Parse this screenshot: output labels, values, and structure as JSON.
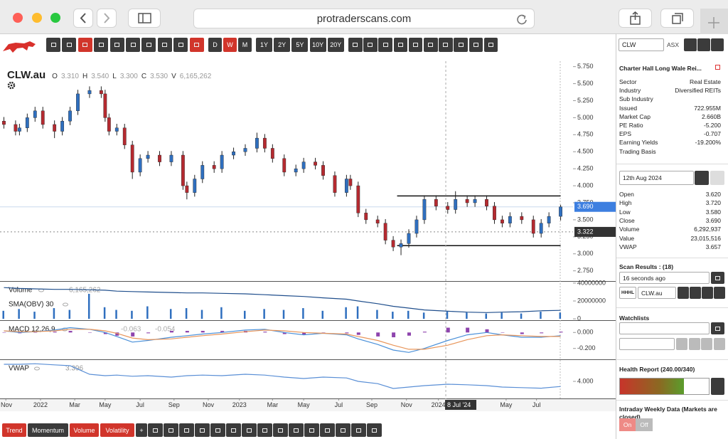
{
  "browser": {
    "url": "protraderscans.com"
  },
  "toolbar": {
    "periods": [
      "D",
      "W",
      "M"
    ],
    "active_period": 1,
    "ranges": [
      "1Y",
      "2Y",
      "5Y",
      "10Y",
      "20Y"
    ],
    "symbol": "CLW",
    "exchange": "ASX"
  },
  "header": {
    "ticker": "CLW.au",
    "quote": [
      {
        "k": "O",
        "v": "3.310"
      },
      {
        "k": "H",
        "v": "3.540"
      },
      {
        "k": "L",
        "v": "3.300"
      },
      {
        "k": "C",
        "v": "3.530"
      },
      {
        "k": "V",
        "v": "6,165,262"
      }
    ]
  },
  "chart_data": [
    {
      "type": "candlestick",
      "up_color": "#2f6fbf",
      "down_color": "#b52a30",
      "xlim": [
        0,
        147
      ],
      "xticks": [
        {
          "value": 1.5,
          "label": "Nov"
        },
        {
          "value": 10.4,
          "label": "2022"
        },
        {
          "value": 19.2,
          "label": "Mar"
        },
        {
          "value": 27,
          "label": "May"
        },
        {
          "value": 36,
          "label": "Jul"
        },
        {
          "value": 44.7,
          "label": "Sep"
        },
        {
          "value": 53.5,
          "label": "Nov"
        },
        {
          "value": 61.5,
          "label": "2023"
        },
        {
          "value": 70,
          "label": "Mar"
        },
        {
          "value": 78,
          "label": "May"
        },
        {
          "value": 87,
          "label": "Jul"
        },
        {
          "value": 95.5,
          "label": "Sep"
        },
        {
          "value": 104.4,
          "label": "Nov"
        },
        {
          "value": 112.6,
          "label": "2024"
        },
        {
          "value": 130,
          "label": "May"
        },
        {
          "value": 137.8,
          "label": "Jul"
        }
      ],
      "ylim": [
        2.6,
        5.83
      ],
      "yticks": [
        {
          "value": 2.75,
          "label": "2.750"
        },
        {
          "value": 3.0,
          "label": "3.000"
        },
        {
          "value": 3.25,
          "label": "3.250"
        },
        {
          "value": 3.5,
          "label": "3.500"
        },
        {
          "value": 3.75,
          "label": "3.750"
        },
        {
          "value": 4.0,
          "label": "4.000"
        },
        {
          "value": 4.25,
          "label": "4.250"
        },
        {
          "value": 4.5,
          "label": "4.500"
        },
        {
          "value": 4.75,
          "label": "4.750"
        },
        {
          "value": 5.0,
          "label": "5.000"
        },
        {
          "value": 5.25,
          "label": "5.250"
        },
        {
          "value": 5.5,
          "label": "5.500"
        },
        {
          "value": 5.75,
          "label": "5.750"
        }
      ],
      "x": [
        1,
        4,
        5,
        7,
        9,
        11,
        14,
        16,
        18,
        20,
        23,
        26,
        27,
        28,
        30,
        32,
        34,
        36,
        38,
        41,
        44,
        47,
        48,
        50,
        52,
        55,
        57,
        60,
        63,
        66,
        68,
        70,
        73,
        76,
        78,
        81,
        83,
        86,
        89,
        90,
        92,
        94,
        97,
        99,
        101,
        103,
        105,
        107,
        109,
        112,
        115,
        117,
        120,
        122,
        125,
        127,
        129,
        131,
        134,
        137,
        139,
        141,
        144
      ],
      "candles": [
        [
          4.95,
          5.01,
          4.84,
          4.9
        ],
        [
          4.9,
          4.96,
          4.74,
          4.8
        ],
        [
          4.8,
          4.91,
          4.74,
          4.85
        ],
        [
          4.85,
          5.06,
          4.79,
          5.0
        ],
        [
          5.0,
          5.16,
          4.94,
          5.1
        ],
        [
          5.1,
          5.16,
          4.84,
          4.9
        ],
        [
          4.9,
          4.96,
          4.7,
          4.8
        ],
        [
          4.8,
          5.01,
          4.74,
          4.95
        ],
        [
          4.95,
          5.16,
          4.89,
          5.1
        ],
        [
          5.1,
          5.41,
          5.04,
          5.35
        ],
        [
          5.35,
          5.46,
          5.29,
          5.4
        ],
        [
          5.4,
          5.46,
          5.29,
          5.35
        ],
        [
          5.35,
          5.41,
          4.94,
          5.0
        ],
        [
          5.0,
          5.06,
          4.74,
          4.8
        ],
        [
          4.8,
          4.91,
          4.74,
          4.85
        ],
        [
          4.85,
          4.91,
          4.54,
          4.6
        ],
        [
          4.6,
          4.66,
          4.1,
          4.2
        ],
        [
          4.2,
          4.46,
          4.14,
          4.4
        ],
        [
          4.4,
          4.51,
          4.34,
          4.45
        ],
        [
          4.45,
          4.51,
          4.29,
          4.35
        ],
        [
          4.35,
          4.51,
          4.29,
          4.45
        ],
        [
          4.45,
          4.51,
          3.94,
          4.0
        ],
        [
          4.0,
          4.06,
          3.8,
          3.9
        ],
        [
          3.9,
          4.16,
          3.84,
          4.1
        ],
        [
          4.1,
          4.36,
          4.04,
          4.3
        ],
        [
          4.3,
          4.36,
          4.19,
          4.25
        ],
        [
          4.25,
          4.51,
          4.19,
          4.45
        ],
        [
          4.45,
          4.56,
          4.39,
          4.5
        ],
        [
          4.5,
          4.61,
          4.44,
          4.55
        ],
        [
          4.55,
          4.78,
          4.49,
          4.7
        ],
        [
          4.7,
          4.76,
          4.49,
          4.55
        ],
        [
          4.55,
          4.61,
          4.34,
          4.4
        ],
        [
          4.4,
          4.46,
          4.14,
          4.2
        ],
        [
          4.2,
          4.31,
          4.14,
          4.25
        ],
        [
          4.25,
          4.41,
          4.19,
          4.35
        ],
        [
          4.35,
          4.41,
          4.24,
          4.3
        ],
        [
          4.3,
          4.36,
          4.09,
          4.15
        ],
        [
          4.15,
          4.21,
          3.84,
          3.9
        ],
        [
          3.9,
          4.16,
          3.84,
          4.1
        ],
        [
          4.1,
          4.16,
          3.94,
          4.0
        ],
        [
          4.0,
          4.06,
          3.54,
          3.6
        ],
        [
          3.6,
          3.66,
          3.44,
          3.5
        ],
        [
          3.5,
          3.56,
          3.39,
          3.45
        ],
        [
          3.45,
          3.51,
          3.14,
          3.2
        ],
        [
          3.2,
          3.26,
          3.04,
          3.1
        ],
        [
          3.1,
          3.21,
          2.98,
          3.15
        ],
        [
          3.15,
          3.36,
          3.09,
          3.3
        ],
        [
          3.3,
          3.56,
          3.24,
          3.5
        ],
        [
          3.5,
          3.86,
          3.44,
          3.8
        ],
        [
          3.8,
          3.86,
          3.64,
          3.7
        ],
        [
          3.7,
          3.76,
          3.59,
          3.65
        ],
        [
          3.65,
          3.92,
          3.59,
          3.8
        ],
        [
          3.8,
          3.86,
          3.69,
          3.75
        ],
        [
          3.75,
          3.86,
          3.69,
          3.8
        ],
        [
          3.8,
          3.86,
          3.64,
          3.7
        ],
        [
          3.7,
          3.76,
          3.44,
          3.5
        ],
        [
          3.5,
          3.56,
          3.39,
          3.45
        ],
        [
          3.45,
          3.61,
          3.39,
          3.55
        ],
        [
          3.55,
          3.61,
          3.44,
          3.5
        ],
        [
          3.5,
          3.56,
          3.24,
          3.3
        ],
        [
          3.3,
          3.51,
          3.24,
          3.45
        ],
        [
          3.45,
          3.61,
          3.39,
          3.55
        ],
        [
          3.55,
          3.72,
          3.49,
          3.69
        ]
      ],
      "lines": [
        {
          "value": 3.85,
          "from": 102,
          "to": 144
        },
        {
          "value": 3.12,
          "from": 102,
          "to": 144
        }
      ],
      "price_labels": [
        {
          "value": 3.69,
          "label": "3.690",
          "color": "#3d7fe0",
          "dashed": false
        },
        {
          "value": 3.322,
          "label": "3.322",
          "color": "#333333",
          "dashed": true
        }
      ],
      "crosshair": {
        "x": 114.5,
        "label": "8 Jul '24"
      }
    },
    {
      "type": "bar",
      "legend_value": "6,165,262",
      "ylim": [
        -1500000,
        41500000
      ],
      "yticks": [
        0,
        20000000,
        40000000
      ],
      "x": [
        1,
        5,
        9,
        14,
        18,
        23,
        27,
        30,
        34,
        38,
        44,
        48,
        52,
        57,
        63,
        68,
        73,
        78,
        83,
        89,
        92,
        97,
        101,
        105,
        109,
        115,
        120,
        125,
        129,
        134,
        139,
        144
      ],
      "series": [
        {
          "name": "Volume",
          "type": "bar",
          "color": "#2f6fbf",
          "values": [
            9000000,
            11000000,
            8000000,
            12000000,
            10000000,
            28000000,
            13000000,
            10000000,
            9000000,
            14000000,
            11000000,
            12000000,
            10000000,
            13000000,
            9000000,
            11000000,
            10000000,
            12000000,
            9000000,
            13000000,
            14000000,
            10000000,
            8000000,
            9000000,
            7000000,
            8000000,
            7000000,
            6000000,
            7000000,
            6000000,
            8000000,
            7000000
          ]
        },
        {
          "name": "SMA(OBV) 30",
          "type": "line",
          "color": "#1f4e8c",
          "values": [
            35000000,
            34000000,
            33500000,
            33000000,
            33000000,
            32500000,
            32000000,
            31000000,
            30500000,
            30000000,
            29500000,
            29000000,
            29000000,
            28500000,
            28000000,
            27000000,
            26000000,
            25000000,
            23500000,
            22000000,
            20000000,
            17000000,
            14000000,
            12000000,
            10000000,
            8500000,
            7500000,
            7000000,
            7500000,
            8000000,
            9000000,
            9500000
          ]
        }
      ]
    },
    {
      "type": "line",
      "title": "MACD 12,26,9",
      "legend_values": [
        "-0.063",
        "-0.054"
      ],
      "ylim": [
        -0.336,
        0.145
      ],
      "yticks": [
        {
          "value": 0,
          "label": "0.000"
        },
        {
          "value": -0.2,
          "label": "-0.200"
        }
      ],
      "x": [
        1,
        5,
        9,
        14,
        18,
        23,
        27,
        30,
        34,
        38,
        44,
        48,
        52,
        57,
        63,
        68,
        73,
        78,
        83,
        89,
        92,
        97,
        101,
        105,
        109,
        115,
        120,
        125,
        129,
        134,
        139,
        144
      ],
      "series": [
        {
          "type": "bar",
          "color": "#8e44ad",
          "values": [
            0.0,
            -0.01,
            0.0,
            0.01,
            0.02,
            0.0,
            -0.02,
            -0.04,
            -0.05,
            -0.01,
            0.02,
            0.02,
            0.02,
            0.02,
            0.02,
            0.01,
            -0.02,
            -0.03,
            0.0,
            -0.01,
            -0.03,
            -0.05,
            -0.06,
            -0.04,
            0.01,
            0.06,
            0.06,
            0.04,
            0.0,
            -0.02,
            -0.01,
            0.01
          ]
        },
        {
          "type": "line",
          "color": "#4a90d9",
          "values": [
            0.02,
            0.0,
            0.01,
            0.03,
            0.06,
            0.04,
            0.0,
            -0.05,
            -0.12,
            -0.1,
            -0.06,
            -0.04,
            -0.02,
            0.0,
            0.03,
            0.04,
            0.0,
            -0.03,
            -0.01,
            -0.03,
            -0.08,
            -0.15,
            -0.22,
            -0.25,
            -0.2,
            -0.1,
            -0.03,
            0.0,
            -0.03,
            -0.06,
            -0.06,
            -0.04
          ]
        },
        {
          "type": "line",
          "color": "#e8955a",
          "values": [
            0.02,
            0.01,
            0.01,
            0.02,
            0.04,
            0.04,
            0.02,
            -0.01,
            -0.07,
            -0.09,
            -0.08,
            -0.06,
            -0.04,
            -0.02,
            0.01,
            0.03,
            0.02,
            0.0,
            -0.01,
            -0.02,
            -0.05,
            -0.1,
            -0.16,
            -0.21,
            -0.21,
            -0.16,
            -0.09,
            -0.04,
            -0.03,
            -0.04,
            -0.05,
            -0.05
          ]
        }
      ]
    },
    {
      "type": "line",
      "title": "VWAP",
      "legend_value": "3.396",
      "ylim": [
        3.4,
        4.75
      ],
      "yticks": [
        {
          "value": 4.0,
          "label": "4.000"
        }
      ],
      "x": [
        1,
        5,
        9,
        14,
        18,
        23,
        27,
        30,
        34,
        38,
        44,
        48,
        52,
        57,
        63,
        68,
        73,
        78,
        83,
        89,
        92,
        97,
        101,
        105,
        109,
        115,
        120,
        125,
        129,
        134,
        139,
        144
      ],
      "series": [
        {
          "type": "line",
          "color": "#5a8fd6",
          "values": [
            4.6,
            4.6,
            4.62,
            4.58,
            4.55,
            4.25,
            4.2,
            4.22,
            4.18,
            4.2,
            4.15,
            4.2,
            4.22,
            4.2,
            4.25,
            4.22,
            4.15,
            4.1,
            4.15,
            4.12,
            4.0,
            3.92,
            3.75,
            3.8,
            3.85,
            3.9,
            3.88,
            3.85,
            3.8,
            3.78,
            3.76,
            3.82
          ]
        }
      ]
    }
  ],
  "panel": {
    "company": "Charter Hall Long Wale Rei...",
    "info": [
      [
        "Sector",
        "Real Estate"
      ],
      [
        "Industry",
        "Diversified REITs"
      ],
      [
        "Sub Industry"
      ],
      [
        "Issued",
        "722.955M"
      ],
      [
        "Market Cap",
        "2.660B"
      ],
      [
        "PE Ratio",
        "-5.200"
      ],
      [
        "EPS",
        "-0.707"
      ],
      [
        "Earning Yields",
        "-19.200%"
      ],
      [
        "Trading Basis"
      ]
    ],
    "date": "12th Aug 2024",
    "ohlc": [
      [
        "Open",
        "3.620"
      ],
      [
        "High",
        "3.720"
      ],
      [
        "Low",
        "3.580"
      ],
      [
        "Close",
        "3.690"
      ],
      [
        "Volume",
        "6,292,937"
      ],
      [
        "Value",
        "23,015,516"
      ],
      [
        "VWAP",
        "3.657"
      ]
    ],
    "scan_title": "Scan Results : (18)",
    "scan_time": "16 seconds ago",
    "scan_tag": "HHHL",
    "scan_symbol": "CLW.au",
    "watchlists": "Watchlists",
    "health": "Health Report (240.00/340)",
    "intraday": "Intraday Weekly Data (Markets are closed)",
    "toggle": [
      "On",
      "Off"
    ]
  },
  "bottom_toolbar": {
    "tabs": [
      "Trend",
      "Momentum",
      "Volume",
      "Volatility",
      "+"
    ],
    "active": [
      0,
      2,
      3
    ]
  }
}
